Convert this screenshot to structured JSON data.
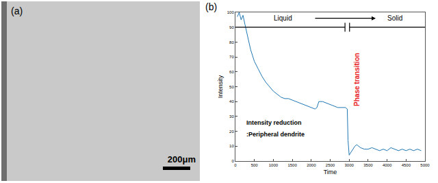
{
  "image_panel": {
    "label": "(a)",
    "scale_bar": "200μm"
  },
  "chart_data": {
    "type": "line",
    "panel_label": "(b)",
    "x_label": "Time",
    "y_label": "Intensity",
    "color": "#1f77b4",
    "x": [
      50,
      100,
      150,
      200,
      250,
      300,
      350,
      400,
      450,
      500,
      600,
      700,
      800,
      900,
      1000,
      1100,
      1200,
      1300,
      1400,
      1500,
      1600,
      1700,
      1800,
      1900,
      2000,
      2100,
      2150,
      2200,
      2300,
      2400,
      2500,
      2600,
      2700,
      2800,
      2900,
      2950,
      2970,
      3000,
      3050,
      3100,
      3150,
      3200,
      3300,
      3400,
      3500,
      3600,
      3700,
      3800,
      3900,
      4000,
      4100,
      4200,
      4300,
      4400,
      4500,
      4600,
      4700,
      4800,
      4900
    ],
    "values": [
      97,
      100,
      95,
      98,
      92,
      86,
      80,
      75,
      71,
      67,
      62,
      57,
      53,
      50,
      47,
      45,
      43,
      42,
      42,
      41,
      40,
      39,
      38,
      37,
      36,
      35,
      36,
      40,
      40,
      39,
      38,
      37,
      36,
      36,
      36,
      35,
      14,
      4,
      6,
      8,
      10,
      11,
      9,
      8,
      8,
      9,
      8,
      7,
      8,
      7,
      9,
      8,
      7,
      8,
      7,
      8,
      7,
      8,
      7
    ],
    "xlim": [
      0,
      5000
    ],
    "xticks": [
      0,
      500,
      1000,
      1500,
      2000,
      2500,
      3000,
      3500,
      4000,
      4500,
      5000
    ],
    "ylim": [
      0,
      100
    ],
    "yticks": [
      0,
      10,
      20,
      30,
      40,
      50,
      60,
      70,
      80,
      90,
      100
    ],
    "grid": false,
    "annotations": {
      "liquid": "Liquid",
      "solid": "Solid",
      "reduction": "Intensity reduction",
      "reduction_detail": ":Peripheral dendrite",
      "transition": "Phase transition"
    }
  }
}
